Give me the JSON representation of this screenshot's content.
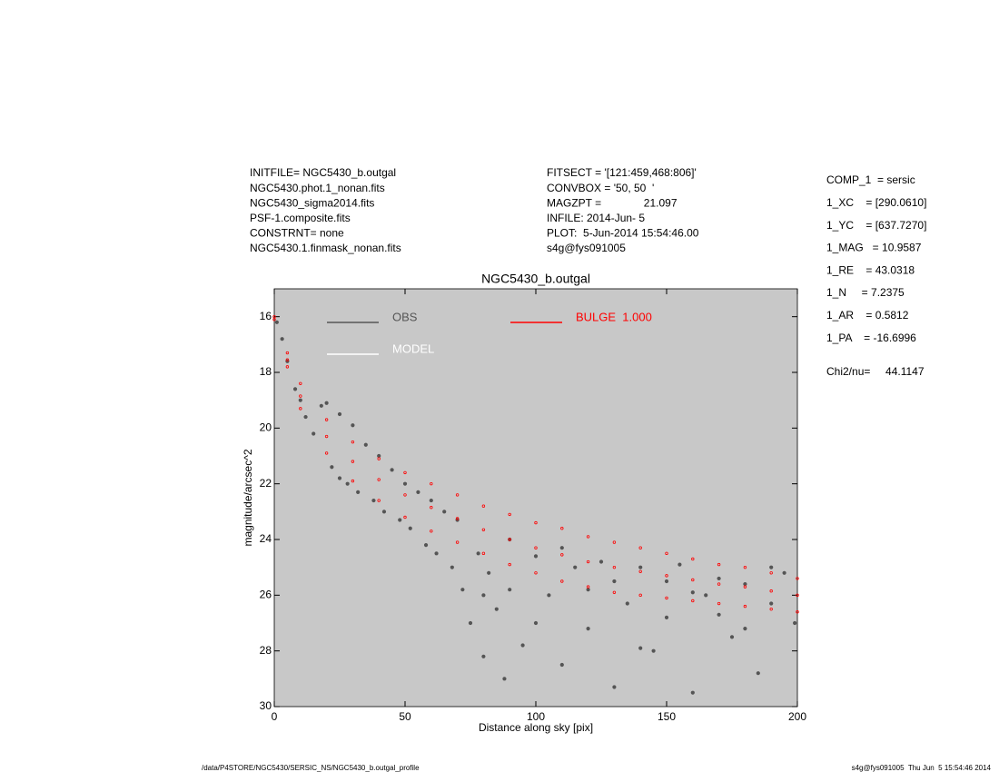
{
  "info_left": [
    "INITFILE= NGC5430_b.outgal",
    "NGC5430.phot.1_nonan.fits",
    "NGC5430_sigma2014.fits",
    "PSF-1.composite.fits",
    "CONSTRNT= none",
    "NGC5430.1.finmask_nonan.fits"
  ],
  "info_middle": [
    "FITSECT = '[121:459,468:806]'",
    "CONVBOX = '50, 50  '",
    "MAGZPT =              21.097",
    "INFILE: 2014-Jun- 5",
    "PLOT:  5-Jun-2014 15:54:46.00",
    "s4g@fys091005"
  ],
  "params": [
    "COMP_1  = sersic",
    "1_XC    = [290.0610]",
    "1_YC    = [637.7270]",
    "1_MAG   = 10.9587",
    "1_RE    = 43.0318",
    "1_N     = 7.2375",
    "1_AR    = 0.5812",
    "1_PA    = -16.6996"
  ],
  "chi2": "Chi2/nu=     44.1147",
  "footer_left": "/data/P4STORE/NGC5430/SERSIC_NS/NGC5430_b.outgal_profile",
  "footer_right": "s4g@fys091005  Thu Jun  5 15:54:46 2014",
  "chart_data": {
    "type": "scatter",
    "title": "NGC5430_b.outgal",
    "x_label": "Distance along sky [pix]",
    "y_label": "magnitude/arcsec^2",
    "xlim": [
      0,
      200
    ],
    "xticks": [
      0,
      50,
      100,
      150,
      200
    ],
    "ylim": [
      30,
      15
    ],
    "yticks": [
      16,
      18,
      20,
      22,
      24,
      26,
      28,
      30
    ],
    "background": "#c8c8c8",
    "legend": "upper left",
    "series": [
      {
        "name": "OBS",
        "color": "#555555",
        "x": [
          1,
          3,
          5,
          8,
          10,
          12,
          15,
          18,
          20,
          22,
          25,
          25,
          28,
          30,
          32,
          35,
          38,
          40,
          42,
          45,
          48,
          50,
          52,
          55,
          58,
          60,
          62,
          65,
          68,
          70,
          72,
          75,
          78,
          80,
          82,
          85,
          88,
          90,
          95,
          100,
          105,
          110,
          115,
          120,
          125,
          130,
          135,
          140,
          145,
          150,
          155,
          160,
          165,
          170,
          175,
          180,
          185,
          190,
          195,
          199,
          90,
          110,
          130,
          150,
          170,
          190,
          80,
          100,
          120,
          140,
          160,
          180
        ],
        "values": [
          16.2,
          16.8,
          17.6,
          18.6,
          19.0,
          19.6,
          20.2,
          19.2,
          19.1,
          21.4,
          19.5,
          21.8,
          22.0,
          19.9,
          22.3,
          20.6,
          22.6,
          21.0,
          23.0,
          21.5,
          23.3,
          22.0,
          23.6,
          22.3,
          24.2,
          22.6,
          24.5,
          23.0,
          25.0,
          23.3,
          25.8,
          27.0,
          24.5,
          28.2,
          25.2,
          26.5,
          29.0,
          24.0,
          27.8,
          24.6,
          26.0,
          28.5,
          25.0,
          27.2,
          24.8,
          29.3,
          26.3,
          25.0,
          28.0,
          26.8,
          24.9,
          29.5,
          26.0,
          25.4,
          27.5,
          25.6,
          28.8,
          26.3,
          25.2,
          27.0,
          25.8,
          24.3,
          25.5,
          25.5,
          26.7,
          25.0,
          26.0,
          27.0,
          25.8,
          27.9,
          25.9,
          27.2
        ]
      },
      {
        "name": "MODEL",
        "color": "#ffffff",
        "x": [],
        "values": []
      },
      {
        "name": "BULGE  1.000",
        "color": "#ff0000",
        "x": [
          0,
          0,
          5,
          5,
          5,
          10,
          10,
          10,
          20,
          20,
          20,
          30,
          30,
          30,
          40,
          40,
          40,
          50,
          50,
          50,
          60,
          60,
          60,
          70,
          70,
          70,
          80,
          80,
          80,
          90,
          90,
          90,
          100,
          100,
          100,
          110,
          110,
          110,
          120,
          120,
          120,
          130,
          130,
          130,
          140,
          140,
          140,
          150,
          150,
          150,
          160,
          160,
          160,
          170,
          170,
          170,
          180,
          180,
          180,
          190,
          190,
          190,
          200,
          200,
          200
        ],
        "values": [
          16.0,
          16.1,
          17.3,
          17.55,
          17.8,
          18.4,
          18.85,
          19.3,
          19.7,
          20.3,
          20.9,
          20.5,
          21.2,
          21.9,
          21.1,
          21.85,
          22.6,
          21.6,
          22.4,
          23.2,
          22.0,
          22.85,
          23.7,
          22.4,
          23.25,
          24.1,
          22.8,
          23.65,
          24.5,
          23.1,
          24.0,
          24.9,
          23.4,
          24.3,
          25.2,
          23.6,
          24.55,
          25.5,
          23.9,
          24.8,
          25.7,
          24.1,
          25.0,
          25.9,
          24.3,
          25.15,
          26.0,
          24.5,
          25.3,
          26.1,
          24.7,
          25.45,
          26.2,
          24.9,
          25.6,
          26.3,
          25.0,
          25.7,
          26.4,
          25.2,
          25.85,
          26.5,
          25.4,
          26.0,
          26.6
        ]
      }
    ]
  }
}
